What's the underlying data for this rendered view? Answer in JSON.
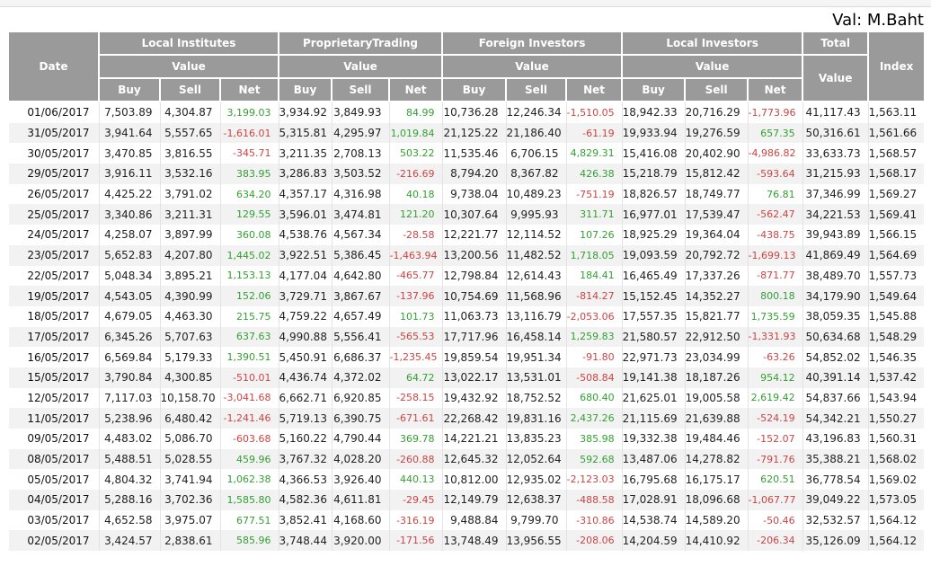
{
  "meta": {
    "unit_label": "Val: M.Baht"
  },
  "colors": {
    "positive": "#33a033",
    "negative": "#cc4444",
    "header_bg": "#9a9a9a",
    "row_alt_bg": "#f2f2f2"
  },
  "table": {
    "headers": {
      "date": "Date",
      "value": "Value",
      "buy": "Buy",
      "sell": "Sell",
      "net": "Net",
      "groups": [
        "Local Institutes",
        "ProprietaryTrading",
        "Foreign Investors",
        "Local Investors"
      ],
      "total": "Total",
      "index": "Index"
    },
    "rows": [
      {
        "date": "01/06/2017",
        "cells": [
          "7,503.89",
          "4,304.87",
          "3,199.03",
          "3,934.92",
          "3,849.93",
          "84.99",
          "10,736.28",
          "12,246.34",
          "-1,510.05",
          "18,942.33",
          "20,716.29",
          "-1,773.96",
          "41,117.43",
          "1,563.11"
        ]
      },
      {
        "date": "31/05/2017",
        "cells": [
          "3,941.64",
          "5,557.65",
          "-1,616.01",
          "5,315.81",
          "4,295.97",
          "1,019.84",
          "21,125.22",
          "21,186.40",
          "-61.19",
          "19,933.94",
          "19,276.59",
          "657.35",
          "50,316.61",
          "1,561.66"
        ]
      },
      {
        "date": "30/05/2017",
        "cells": [
          "3,470.85",
          "3,816.55",
          "-345.71",
          "3,211.35",
          "2,708.13",
          "503.22",
          "11,535.46",
          "6,706.15",
          "4,829.31",
          "15,416.08",
          "20,402.90",
          "-4,986.82",
          "33,633.73",
          "1,568.57"
        ]
      },
      {
        "date": "29/05/2017",
        "cells": [
          "3,916.11",
          "3,532.16",
          "383.95",
          "3,286.83",
          "3,503.52",
          "-216.69",
          "8,794.20",
          "8,367.82",
          "426.38",
          "15,218.79",
          "15,812.42",
          "-593.64",
          "31,215.93",
          "1,568.17"
        ]
      },
      {
        "date": "26/05/2017",
        "cells": [
          "4,425.22",
          "3,791.02",
          "634.20",
          "4,357.17",
          "4,316.98",
          "40.18",
          "9,738.04",
          "10,489.23",
          "-751.19",
          "18,826.57",
          "18,749.77",
          "76.81",
          "37,346.99",
          "1,569.27"
        ]
      },
      {
        "date": "25/05/2017",
        "cells": [
          "3,340.86",
          "3,211.31",
          "129.55",
          "3,596.01",
          "3,474.81",
          "121.20",
          "10,307.64",
          "9,995.93",
          "311.71",
          "16,977.01",
          "17,539.47",
          "-562.47",
          "34,221.53",
          "1,569.41"
        ]
      },
      {
        "date": "24/05/2017",
        "cells": [
          "4,258.07",
          "3,897.99",
          "360.08",
          "4,538.76",
          "4,567.34",
          "-28.58",
          "12,221.77",
          "12,114.52",
          "107.26",
          "18,925.29",
          "19,364.04",
          "-438.75",
          "39,943.89",
          "1,566.15"
        ]
      },
      {
        "date": "23/05/2017",
        "cells": [
          "5,652.83",
          "4,207.80",
          "1,445.02",
          "3,922.51",
          "5,386.45",
          "-1,463.94",
          "13,200.56",
          "11,482.52",
          "1,718.05",
          "19,093.59",
          "20,792.72",
          "-1,699.13",
          "41,869.49",
          "1,564.69"
        ]
      },
      {
        "date": "22/05/2017",
        "cells": [
          "5,048.34",
          "3,895.21",
          "1,153.13",
          "4,177.04",
          "4,642.80",
          "-465.77",
          "12,798.84",
          "12,614.43",
          "184.41",
          "16,465.49",
          "17,337.26",
          "-871.77",
          "38,489.70",
          "1,557.73"
        ]
      },
      {
        "date": "19/05/2017",
        "cells": [
          "4,543.05",
          "4,390.99",
          "152.06",
          "3,729.71",
          "3,867.67",
          "-137.96",
          "10,754.69",
          "11,568.96",
          "-814.27",
          "15,152.45",
          "14,352.27",
          "800.18",
          "34,179.90",
          "1,549.64"
        ]
      },
      {
        "date": "18/05/2017",
        "cells": [
          "4,679.05",
          "4,463.30",
          "215.75",
          "4,759.22",
          "4,657.49",
          "101.73",
          "11,063.73",
          "13,116.79",
          "-2,053.06",
          "17,557.35",
          "15,821.77",
          "1,735.59",
          "38,059.35",
          "1,545.88"
        ]
      },
      {
        "date": "17/05/2017",
        "cells": [
          "6,345.26",
          "5,707.63",
          "637.63",
          "4,990.88",
          "5,556.41",
          "-565.53",
          "17,717.96",
          "16,458.14",
          "1,259.83",
          "21,580.57",
          "22,912.50",
          "-1,331.93",
          "50,634.68",
          "1,548.29"
        ]
      },
      {
        "date": "16/05/2017",
        "cells": [
          "6,569.84",
          "5,179.33",
          "1,390.51",
          "5,450.91",
          "6,686.37",
          "-1,235.45",
          "19,859.54",
          "19,951.34",
          "-91.80",
          "22,971.73",
          "23,034.99",
          "-63.26",
          "54,852.02",
          "1,546.35"
        ]
      },
      {
        "date": "15/05/2017",
        "cells": [
          "3,790.84",
          "4,300.85",
          "-510.01",
          "4,436.74",
          "4,372.02",
          "64.72",
          "13,022.17",
          "13,531.01",
          "-508.84",
          "19,141.38",
          "18,187.26",
          "954.12",
          "40,391.14",
          "1,537.42"
        ]
      },
      {
        "date": "12/05/2017",
        "cells": [
          "7,117.03",
          "10,158.70",
          "-3,041.68",
          "6,662.71",
          "6,920.85",
          "-258.15",
          "19,432.92",
          "18,752.52",
          "680.40",
          "21,625.01",
          "19,005.58",
          "2,619.42",
          "54,837.66",
          "1,543.94"
        ]
      },
      {
        "date": "11/05/2017",
        "cells": [
          "5,238.96",
          "6,480.42",
          "-1,241.46",
          "5,719.13",
          "6,390.75",
          "-671.61",
          "22,268.42",
          "19,831.16",
          "2,437.26",
          "21,115.69",
          "21,639.88",
          "-524.19",
          "54,342.21",
          "1,550.27"
        ]
      },
      {
        "date": "09/05/2017",
        "cells": [
          "4,483.02",
          "5,086.70",
          "-603.68",
          "5,160.22",
          "4,790.44",
          "369.78",
          "14,221.21",
          "13,835.23",
          "385.98",
          "19,332.38",
          "19,484.46",
          "-152.07",
          "43,196.83",
          "1,560.31"
        ]
      },
      {
        "date": "08/05/2017",
        "cells": [
          "5,488.51",
          "5,028.55",
          "459.96",
          "3,767.32",
          "4,028.20",
          "-260.88",
          "12,645.32",
          "12,052.64",
          "592.68",
          "13,487.06",
          "14,278.82",
          "-791.76",
          "35,388.21",
          "1,568.02"
        ]
      },
      {
        "date": "05/05/2017",
        "cells": [
          "4,804.32",
          "3,741.94",
          "1,062.38",
          "4,366.53",
          "3,926.40",
          "440.13",
          "10,812.00",
          "12,935.02",
          "-2,123.03",
          "16,795.68",
          "16,175.17",
          "620.51",
          "36,778.54",
          "1,569.02"
        ]
      },
      {
        "date": "04/05/2017",
        "cells": [
          "5,288.16",
          "3,702.36",
          "1,585.80",
          "4,582.36",
          "4,611.81",
          "-29.45",
          "12,149.79",
          "12,638.37",
          "-488.58",
          "17,028.91",
          "18,096.68",
          "-1,067.77",
          "39,049.22",
          "1,573.05"
        ]
      },
      {
        "date": "03/05/2017",
        "cells": [
          "4,652.58",
          "3,975.07",
          "677.51",
          "3,852.41",
          "4,168.60",
          "-316.19",
          "9,488.84",
          "9,799.70",
          "-310.86",
          "14,538.74",
          "14,589.20",
          "-50.46",
          "32,532.57",
          "1,564.12"
        ]
      },
      {
        "date": "02/05/2017",
        "cells": [
          "3,424.57",
          "2,838.61",
          "585.96",
          "3,748.44",
          "3,920.00",
          "-171.56",
          "13,748.49",
          "13,956.55",
          "-208.06",
          "14,204.59",
          "14,410.92",
          "-206.34",
          "35,126.09",
          "1,564.12"
        ]
      }
    ]
  }
}
